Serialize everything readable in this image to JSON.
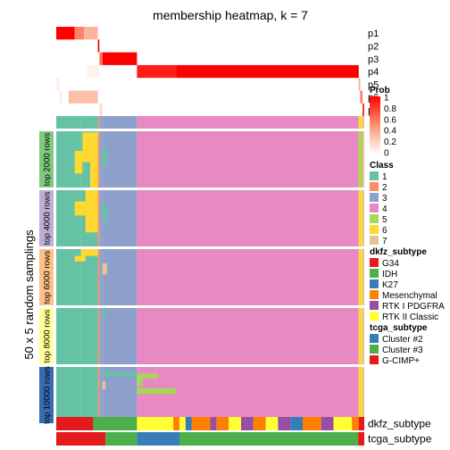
{
  "chart_data": {
    "type": "heatmap",
    "title": "membership heatmap, k = 7",
    "row_axis_label": "50 x 5 random samplings",
    "row_groups": [
      "top 2000 rows",
      "top 4000 rows",
      "top 6000 rows",
      "top 8000 rows",
      "top 10000 rows"
    ],
    "row_group_colors": [
      "#7FC97F",
      "#BEAED4",
      "#FDC086",
      "#FFFF99",
      "#386CB0"
    ],
    "prob_rows": [
      {
        "label": "p1",
        "segments": [
          [
            0.0,
            0.06,
            1.0
          ],
          [
            0.06,
            0.09,
            0.55
          ],
          [
            0.09,
            0.135,
            0.35
          ]
        ]
      },
      {
        "label": "p2",
        "segments": [
          [
            0.135,
            0.14,
            1.0
          ]
        ]
      },
      {
        "label": "p3",
        "segments": [
          [
            0.14,
            0.15,
            0.6
          ],
          [
            0.15,
            0.262,
            1.0
          ]
        ]
      },
      {
        "label": "p4",
        "segments": [
          [
            0.1,
            0.14,
            0.06
          ],
          [
            0.262,
            0.39,
            0.9
          ],
          [
            0.39,
            0.982,
            1.0
          ]
        ]
      },
      {
        "label": "p5",
        "segments": [
          [
            0.0,
            0.01,
            0.08
          ],
          [
            0.982,
            0.987,
            0.4
          ]
        ]
      },
      {
        "label": "p6",
        "segments": [
          [
            0.01,
            0.02,
            0.08
          ],
          [
            0.04,
            0.135,
            0.3
          ],
          [
            0.987,
            0.994,
            0.6
          ]
        ]
      },
      {
        "label": "p7",
        "segments": [
          [
            0.14,
            0.15,
            0.15
          ],
          [
            0.994,
            1.0,
            0.8
          ]
        ]
      }
    ],
    "prob_legend": {
      "title": "Prob",
      "ticks": [
        "1",
        "0.8",
        "0.6",
        "0.4",
        "0.2",
        "0"
      ]
    },
    "class_legend": {
      "title": "Class",
      "items": [
        {
          "label": "1",
          "color": "#66C2A5"
        },
        {
          "label": "2",
          "color": "#FC8D62"
        },
        {
          "label": "3",
          "color": "#8DA0CB"
        },
        {
          "label": "4",
          "color": "#E78AC3"
        },
        {
          "label": "5",
          "color": "#A6D854"
        },
        {
          "label": "6",
          "color": "#FFD92F"
        },
        {
          "label": "7",
          "color": "#E5C494"
        }
      ]
    },
    "class_columns": [
      {
        "from": 0.0,
        "to": 0.08,
        "class": "1"
      },
      {
        "from": 0.08,
        "to": 0.135,
        "class": "1"
      },
      {
        "from": 0.135,
        "to": 0.14,
        "class": "2"
      },
      {
        "from": 0.14,
        "to": 0.15,
        "class": "3"
      },
      {
        "from": 0.15,
        "to": 0.262,
        "class": "3"
      },
      {
        "from": 0.262,
        "to": 0.982,
        "class": "4"
      },
      {
        "from": 0.982,
        "to": 0.994,
        "class": "6"
      },
      {
        "from": 0.994,
        "to": 1.0,
        "class": "7"
      }
    ],
    "class_patches": [
      {
        "group": 0,
        "from": 0.085,
        "to": 0.135,
        "rfrom": 0.02,
        "rto": 0.55,
        "class": "6"
      },
      {
        "group": 0,
        "from": 0.11,
        "to": 0.135,
        "rfrom": 0.55,
        "rto": 1.0,
        "class": "6"
      },
      {
        "group": 0,
        "from": 0.06,
        "to": 0.085,
        "rfrom": 0.35,
        "rto": 0.75,
        "class": "6"
      },
      {
        "group": 0,
        "from": 0.15,
        "to": 0.165,
        "rfrom": 0.3,
        "rto": 0.6,
        "class": "1"
      },
      {
        "group": 0,
        "from": 0.982,
        "to": 0.994,
        "rfrom": 0.0,
        "rto": 1.0,
        "class": "5"
      },
      {
        "group": 1,
        "from": 0.095,
        "to": 0.135,
        "rfrom": 0.0,
        "rto": 0.75,
        "class": "6"
      },
      {
        "group": 1,
        "from": 0.06,
        "to": 0.095,
        "rfrom": 0.2,
        "rto": 0.45,
        "class": "6"
      },
      {
        "group": 1,
        "from": 0.15,
        "to": 0.165,
        "rfrom": 0.25,
        "rto": 0.55,
        "class": "1"
      },
      {
        "group": 2,
        "from": 0.08,
        "to": 0.135,
        "rfrom": 0.0,
        "rto": 0.12,
        "class": "6"
      },
      {
        "group": 2,
        "from": 0.06,
        "to": 0.095,
        "rfrom": 0.12,
        "rto": 0.22,
        "class": "6"
      },
      {
        "group": 2,
        "from": 0.15,
        "to": 0.165,
        "rfrom": 0.25,
        "rto": 0.45,
        "class": "7"
      },
      {
        "group": 3,
        "from": 0.15,
        "to": 0.165,
        "rfrom": 0.05,
        "rto": 0.15,
        "class": "1"
      },
      {
        "group": 4,
        "from": 0.15,
        "to": 0.175,
        "rfrom": 0.04,
        "rto": 0.06,
        "class": "1"
      },
      {
        "group": 4,
        "from": 0.15,
        "to": 0.262,
        "rfrom": 0.1,
        "rto": 0.17,
        "class": "1"
      },
      {
        "group": 4,
        "from": 0.262,
        "to": 0.33,
        "rfrom": 0.12,
        "rto": 0.2,
        "class": "5"
      },
      {
        "group": 4,
        "from": 0.262,
        "to": 0.28,
        "rfrom": 0.2,
        "rto": 0.35,
        "class": "5"
      },
      {
        "group": 4,
        "from": 0.262,
        "to": 0.39,
        "rfrom": 0.38,
        "rto": 0.48,
        "class": "5"
      },
      {
        "group": 4,
        "from": 0.15,
        "to": 0.16,
        "rfrom": 0.25,
        "rto": 0.4,
        "class": "7"
      }
    ],
    "dkfz_legend": {
      "title": "dkfz_subtype",
      "items": [
        {
          "label": "G34",
          "color": "#E41A1C"
        },
        {
          "label": "IDH",
          "color": "#4DAF4A"
        },
        {
          "label": "K27",
          "color": "#377EB8"
        },
        {
          "label": "Mesenchymal",
          "color": "#FF7F00"
        },
        {
          "label": "RTK I PDGFRA",
          "color": "#984EA3"
        },
        {
          "label": "RTK II Classic",
          "color": "#FFFF33"
        }
      ]
    },
    "tcga_legend": {
      "title": "tcga_subtype",
      "items": [
        {
          "label": "Cluster #2",
          "color": "#377EB8"
        },
        {
          "label": "Cluster #3",
          "color": "#4DAF4A"
        },
        {
          "label": "G-CIMP+",
          "color": "#E41A1C"
        }
      ]
    },
    "annotation_tracks": [
      {
        "label": "dkfz_subtype",
        "segments": [
          {
            "from": 0.0,
            "to": 0.12,
            "value": "G34"
          },
          {
            "from": 0.12,
            "to": 0.262,
            "value": "IDH"
          },
          {
            "from": 0.262,
            "to": 0.38,
            "value": "RTK II Classic"
          },
          {
            "from": 0.38,
            "to": 0.4,
            "value": "Mesenchymal"
          },
          {
            "from": 0.4,
            "to": 0.42,
            "value": "RTK II Classic"
          },
          {
            "from": 0.42,
            "to": 0.44,
            "value": "K27"
          },
          {
            "from": 0.44,
            "to": 0.5,
            "value": "Mesenchymal"
          },
          {
            "from": 0.5,
            "to": 0.52,
            "value": "RTK I PDGFRA"
          },
          {
            "from": 0.52,
            "to": 0.56,
            "value": "Mesenchymal"
          },
          {
            "from": 0.56,
            "to": 0.6,
            "value": "RTK II Classic"
          },
          {
            "from": 0.6,
            "to": 0.64,
            "value": "RTK I PDGFRA"
          },
          {
            "from": 0.64,
            "to": 0.68,
            "value": "Mesenchymal"
          },
          {
            "from": 0.68,
            "to": 0.72,
            "value": "RTK II Classic"
          },
          {
            "from": 0.72,
            "to": 0.76,
            "value": "RTK I PDGFRA"
          },
          {
            "from": 0.76,
            "to": 0.8,
            "value": "K27"
          },
          {
            "from": 0.8,
            "to": 0.86,
            "value": "Mesenchymal"
          },
          {
            "from": 0.86,
            "to": 0.9,
            "value": "RTK I PDGFRA"
          },
          {
            "from": 0.9,
            "to": 0.96,
            "value": "RTK II Classic"
          },
          {
            "from": 0.96,
            "to": 0.982,
            "value": "Mesenchymal"
          },
          {
            "from": 0.982,
            "to": 1.0,
            "value": "G34"
          }
        ]
      },
      {
        "label": "tcga_subtype",
        "segments": [
          {
            "from": 0.0,
            "to": 0.16,
            "value": "G-CIMP+"
          },
          {
            "from": 0.16,
            "to": 0.262,
            "value": "Cluster #3"
          },
          {
            "from": 0.262,
            "to": 0.4,
            "value": "Cluster #2"
          },
          {
            "from": 0.4,
            "to": 0.98,
            "value": "Cluster #3"
          },
          {
            "from": 0.98,
            "to": 1.0,
            "value": "G-CIMP+"
          }
        ]
      }
    ]
  }
}
